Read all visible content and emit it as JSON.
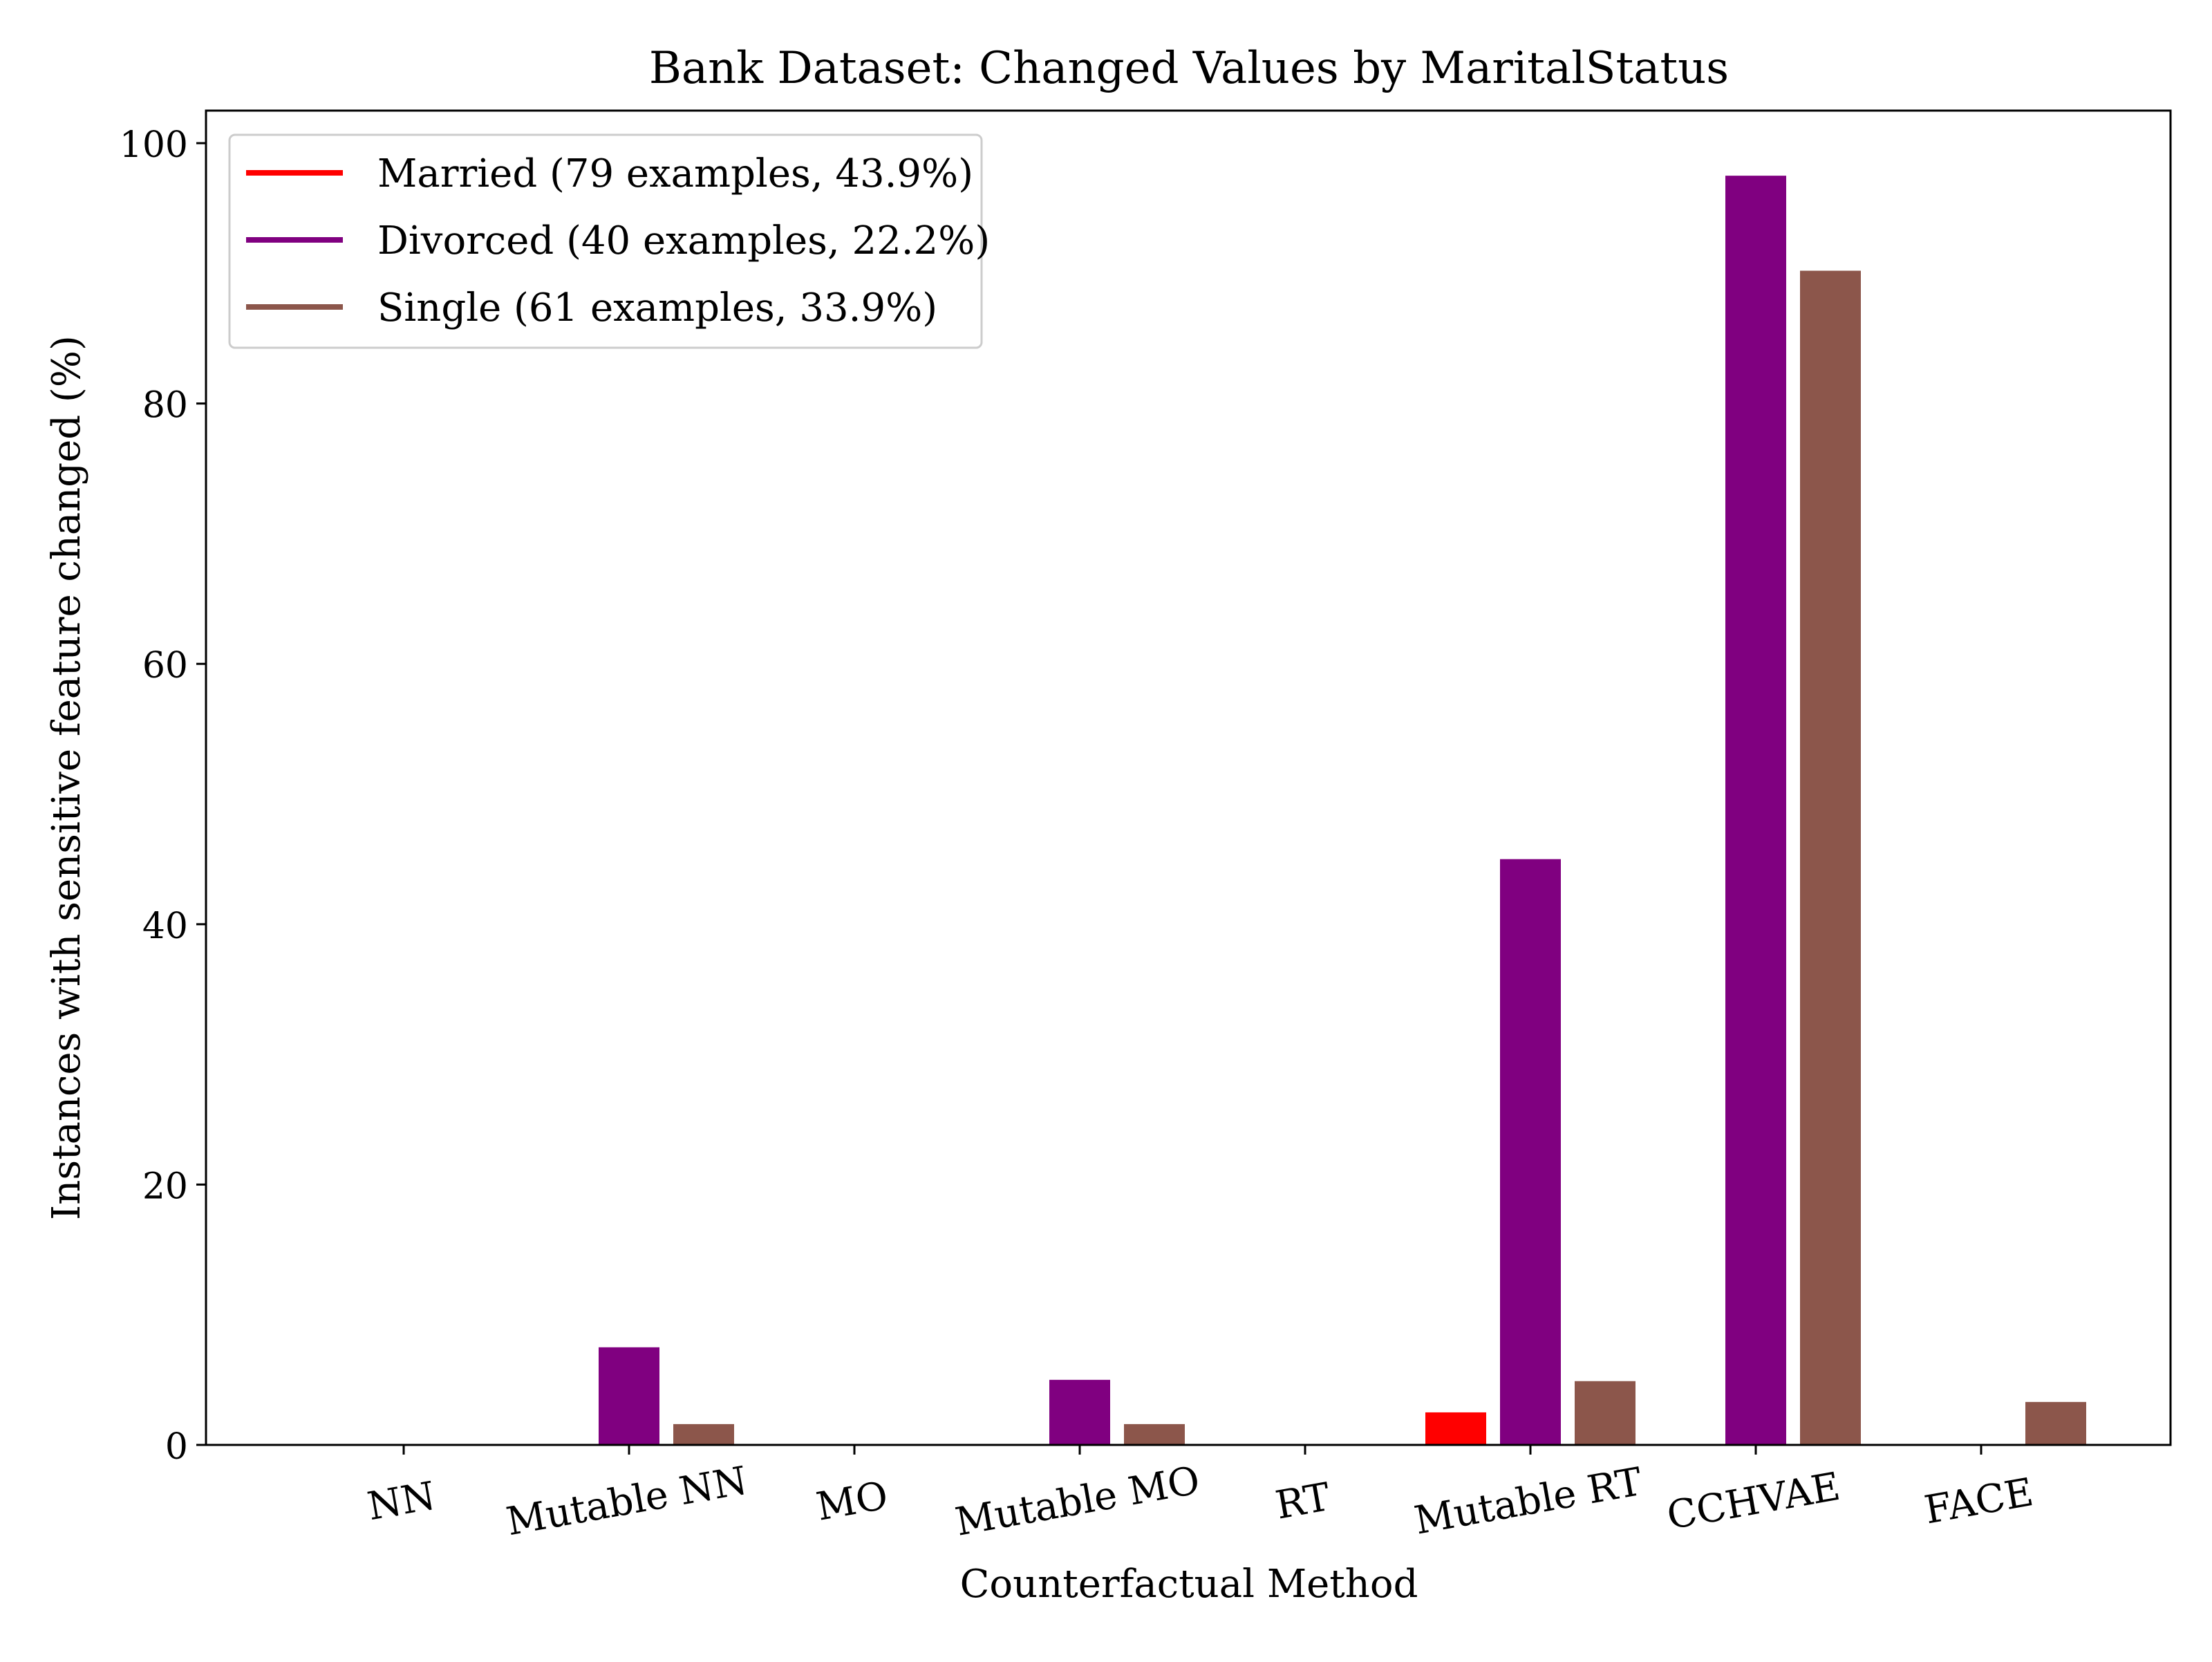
{
  "chart_data": {
    "type": "bar",
    "title": "Bank Dataset: Changed Values by MaritalStatus",
    "xlabel": "Counterfactual Method",
    "ylabel": "Instances with sensitive feature changed (%)",
    "categories": [
      "NN",
      "Mutable NN",
      "MO",
      "Mutable MO",
      "RT",
      "Mutable RT",
      "CCHVAE",
      "FACE"
    ],
    "ylim": [
      0,
      102.5
    ],
    "yticks": [
      0,
      20,
      40,
      60,
      80,
      100
    ],
    "grid": false,
    "legend_position": "upper-left",
    "series": [
      {
        "name": "Married (79 examples, 43.9%)",
        "color": "#ff0000",
        "values": [
          0,
          0,
          0,
          0,
          0,
          2.5,
          0,
          0
        ]
      },
      {
        "name": "Divorced (40 examples, 22.2%)",
        "color": "#800080",
        "values": [
          0,
          7.5,
          0,
          5.0,
          0,
          45.0,
          97.5,
          0
        ]
      },
      {
        "name": "Single (61 examples, 33.9%)",
        "color": "#8c564b",
        "values": [
          0,
          1.6,
          0,
          1.6,
          0,
          4.9,
          90.2,
          3.3
        ]
      }
    ]
  }
}
